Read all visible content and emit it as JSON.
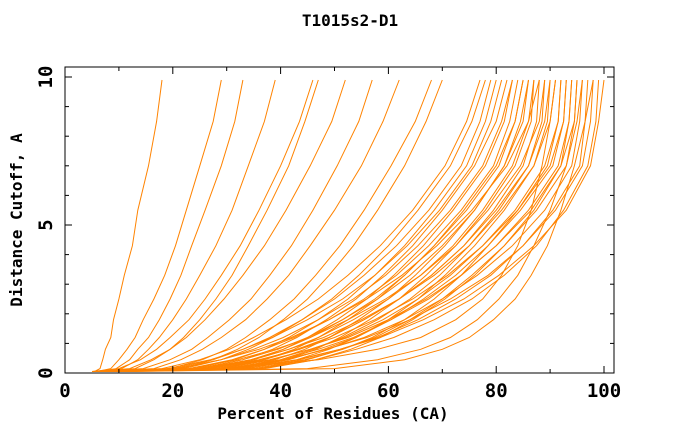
{
  "chart_data": {
    "type": "line",
    "title": "T1015s2-D1",
    "xlabel": "Percent of Residues (CA)",
    "ylabel": "Distance Cutoff, A",
    "xlim": [
      0,
      100
    ],
    "ylim": [
      0,
      10
    ],
    "grid": false,
    "legend": "none",
    "frame": "full-box-with-mirrored-ticks",
    "line_color": "#ff8300",
    "axis_color": "#000000",
    "background_color": "#ffffff",
    "x_major_ticks": [
      0,
      20,
      40,
      60,
      80,
      100
    ],
    "x_minor_ticks": [
      10,
      30,
      50,
      70,
      90
    ],
    "y_major_ticks": [
      0,
      5,
      10
    ],
    "y_minor_ticks": [
      1,
      2,
      3,
      4,
      6,
      7,
      8,
      9
    ],
    "curve_y_levels": [
      0.05,
      0.15,
      0.45,
      0.8,
      1.2,
      1.8,
      2.5,
      3.3,
      4.3,
      5.5,
      7.0,
      8.5,
      9.9
    ],
    "curves": [
      [
        5.5,
        6.5,
        7,
        7.5,
        8.5,
        9,
        10,
        11,
        12.5,
        13.5,
        15.5,
        17,
        18
      ],
      [
        6,
        8.5,
        10,
        11.5,
        13,
        14.5,
        16.5,
        18.5,
        20.5,
        22.5,
        25,
        27.5,
        29
      ],
      [
        6.5,
        9.5,
        12,
        13.5,
        15.5,
        17.5,
        19.5,
        21.5,
        23.5,
        26,
        29,
        31.5,
        33
      ],
      [
        7,
        10.5,
        13.5,
        15.5,
        17.5,
        20,
        22.5,
        25,
        28,
        31,
        34,
        37,
        39
      ],
      [
        5,
        10,
        14,
        17,
        19.5,
        23,
        26,
        29,
        32.5,
        36,
        40,
        43.5,
        46
      ],
      [
        7.5,
        13,
        16.5,
        19.5,
        22,
        25,
        28,
        31,
        34,
        37.5,
        41.5,
        44.5,
        47
      ],
      [
        6,
        12,
        16,
        19.5,
        22.5,
        26,
        29.5,
        33,
        37,
        41,
        45.5,
        49.5,
        52
      ],
      [
        6.5,
        14.5,
        19.5,
        23.5,
        26.5,
        30.5,
        34.5,
        38,
        42,
        46,
        50.5,
        54.5,
        57
      ],
      [
        7,
        16.5,
        21.5,
        25.5,
        29,
        33.5,
        37.5,
        41.5,
        45.5,
        50,
        55,
        59,
        62
      ],
      [
        8,
        19.5,
        25.5,
        30,
        33.5,
        38,
        42.5,
        46.5,
        51,
        55.5,
        60.5,
        65,
        68
      ],
      [
        8.5,
        21.5,
        27.5,
        32,
        36,
        40.5,
        45,
        49,
        53.5,
        58,
        63,
        67,
        70
      ],
      [
        5.5,
        18,
        25,
        30.5,
        35,
        41,
        47,
        52.5,
        58.5,
        64.5,
        70.5,
        74.5,
        77
      ],
      [
        6.5,
        22,
        29,
        34,
        38.5,
        44,
        49.5,
        54.5,
        60,
        65.5,
        71.5,
        75.5,
        78
      ],
      [
        5,
        20,
        27.5,
        33,
        38,
        44,
        50,
        55.5,
        61.5,
        67.5,
        73.5,
        77,
        79
      ],
      [
        7,
        24,
        31.5,
        37,
        41.5,
        47,
        52.5,
        57.5,
        63,
        68.5,
        74.5,
        78,
        80
      ],
      [
        6,
        19,
        27,
        33,
        38.5,
        45,
        51.5,
        57.5,
        63.5,
        69.5,
        75.5,
        79,
        81
      ],
      [
        7.5,
        25,
        33,
        38.5,
        43,
        48.5,
        54,
        59,
        64.5,
        70,
        76,
        80,
        82
      ],
      [
        6.5,
        21,
        29,
        35,
        40.5,
        47,
        53.5,
        59.5,
        65.5,
        71.5,
        77.5,
        81,
        83
      ],
      [
        8,
        27,
        35,
        40.5,
        45,
        50.5,
        56,
        61,
        66.5,
        72,
        78,
        81.5,
        83
      ],
      [
        5.5,
        23,
        31,
        37,
        42.5,
        49,
        55.5,
        61.5,
        67.5,
        73.5,
        79.5,
        82.5,
        84
      ],
      [
        7,
        26,
        34.5,
        40.5,
        45.5,
        51.5,
        57.5,
        63,
        68.5,
        74.5,
        80.5,
        83.5,
        85
      ],
      [
        8.5,
        29,
        37,
        42.5,
        47,
        52.5,
        58,
        63,
        68.5,
        74,
        80,
        83.5,
        85
      ],
      [
        6,
        24.5,
        33,
        39.5,
        45,
        51.5,
        58,
        64,
        70,
        76,
        81.5,
        84.5,
        86
      ],
      [
        9,
        31,
        39,
        44.5,
        49,
        54.5,
        60,
        65,
        70.5,
        76,
        81.5,
        85,
        86
      ],
      [
        6.5,
        26,
        35,
        41.5,
        47,
        53.5,
        60,
        66,
        72,
        77.5,
        83,
        86,
        87
      ],
      [
        9.5,
        33,
        41,
        46.5,
        51,
        56.5,
        62,
        67,
        72.5,
        78,
        83.5,
        86.5,
        87
      ],
      [
        5,
        20.5,
        29,
        36,
        42,
        49,
        56,
        62.5,
        69,
        75.5,
        82,
        86,
        88
      ],
      [
        7.5,
        28,
        37,
        43.5,
        49,
        55.5,
        62,
        68,
        74,
        79.5,
        85,
        87.5,
        88
      ],
      [
        8.5,
        31,
        40,
        46,
        51.5,
        58,
        64,
        69.5,
        75,
        80.5,
        86,
        88.5,
        89
      ],
      [
        6,
        23,
        32,
        39,
        45.5,
        52.5,
        59.5,
        66,
        72.5,
        78.5,
        84.5,
        88,
        89
      ],
      [
        7,
        27,
        36.5,
        43,
        49,
        55.5,
        62,
        68,
        74,
        80,
        86,
        89,
        90
      ],
      [
        9,
        34,
        43,
        49,
        54,
        60,
        65.5,
        70.5,
        76,
        81.5,
        87,
        89.5,
        90
      ],
      [
        6.5,
        25,
        34.5,
        41.5,
        48,
        55,
        62,
        68.5,
        75,
        81,
        87,
        90,
        91
      ],
      [
        8,
        30,
        47,
        58,
        66,
        72.5,
        77.5,
        81,
        84,
        86.5,
        88.5,
        90,
        91
      ],
      [
        7.5,
        29,
        38.5,
        45.5,
        52,
        59,
        65.5,
        71.5,
        77.5,
        83.5,
        89,
        91.5,
        92
      ],
      [
        9.5,
        36,
        45,
        51.5,
        57,
        63,
        68.5,
        73.5,
        78.5,
        84,
        89.5,
        91.5,
        92
      ],
      [
        6,
        26.5,
        36,
        43.5,
        50,
        57.5,
        64.5,
        71,
        77.5,
        84,
        90,
        92.5,
        93
      ],
      [
        8,
        32,
        41.5,
        48,
        54,
        60.5,
        66.5,
        72.5,
        78.5,
        84.5,
        90.5,
        92.5,
        93
      ],
      [
        7,
        30,
        40,
        47,
        53.5,
        60.5,
        67.5,
        73.5,
        80,
        86,
        91.5,
        93.5,
        94
      ],
      [
        10,
        37,
        46.5,
        53,
        58.5,
        64.5,
        70.5,
        76,
        81.5,
        87,
        92,
        93.5,
        94
      ],
      [
        6.5,
        28,
        38,
        45.5,
        52.5,
        60,
        67,
        73.5,
        80,
        86.5,
        92,
        94.5,
        95
      ],
      [
        9,
        35,
        44.5,
        51.5,
        57.5,
        64,
        70,
        75.5,
        81.5,
        87.5,
        93,
        94.5,
        95
      ],
      [
        7.5,
        31,
        41,
        48.5,
        55.5,
        63,
        70,
        76.5,
        83,
        89,
        94,
        95.5,
        96
      ],
      [
        8.5,
        33.5,
        43.5,
        51,
        58,
        65.5,
        72.5,
        79,
        85,
        90.5,
        95.5,
        96.5,
        97
      ],
      [
        6,
        29.5,
        40.5,
        48.5,
        56,
        64,
        71.5,
        78.5,
        85,
        91,
        96,
        97.5,
        98
      ],
      [
        9.5,
        36,
        46.5,
        54,
        61,
        68.5,
        75.5,
        81.5,
        87.5,
        92.5,
        97,
        98.5,
        99
      ],
      [
        7,
        32,
        43,
        51,
        58.5,
        66.5,
        74,
        80.5,
        87,
        93,
        97.5,
        99,
        100
      ],
      [
        11,
        45,
        58,
        66,
        71.5,
        76.5,
        80.5,
        84,
        87,
        90,
        93,
        95,
        96
      ],
      [
        12,
        50,
        63,
        70,
        75,
        79.5,
        83.5,
        86.5,
        89.5,
        92,
        94.5,
        96.5,
        98
      ]
    ]
  }
}
